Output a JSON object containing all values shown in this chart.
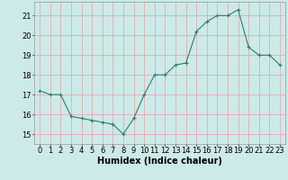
{
  "x": [
    0,
    1,
    2,
    3,
    4,
    5,
    6,
    7,
    8,
    9,
    10,
    11,
    12,
    13,
    14,
    15,
    16,
    17,
    18,
    19,
    20,
    21,
    22,
    23
  ],
  "y": [
    17.2,
    17.0,
    17.0,
    15.9,
    15.8,
    15.7,
    15.6,
    15.5,
    15.0,
    15.8,
    17.0,
    18.0,
    18.0,
    18.5,
    18.6,
    20.2,
    20.7,
    21.0,
    21.0,
    21.3,
    19.4,
    19.0,
    19.0,
    18.5
  ],
  "line_color": "#2d7d6e",
  "marker": "+",
  "marker_size": 3,
  "marker_linewidth": 0.8,
  "bg_color": "#cceae8",
  "grid_color": "#e8a0a0",
  "xlabel": "Humidex (Indice chaleur)",
  "xlim": [
    -0.5,
    23.5
  ],
  "ylim": [
    14.5,
    21.7
  ],
  "xticks": [
    0,
    1,
    2,
    3,
    4,
    5,
    6,
    7,
    8,
    9,
    10,
    11,
    12,
    13,
    14,
    15,
    16,
    17,
    18,
    19,
    20,
    21,
    22,
    23
  ],
  "yticks": [
    15,
    16,
    17,
    18,
    19,
    20,
    21
  ],
  "tick_fontsize": 6,
  "xlabel_fontsize": 7,
  "linewidth": 0.8
}
